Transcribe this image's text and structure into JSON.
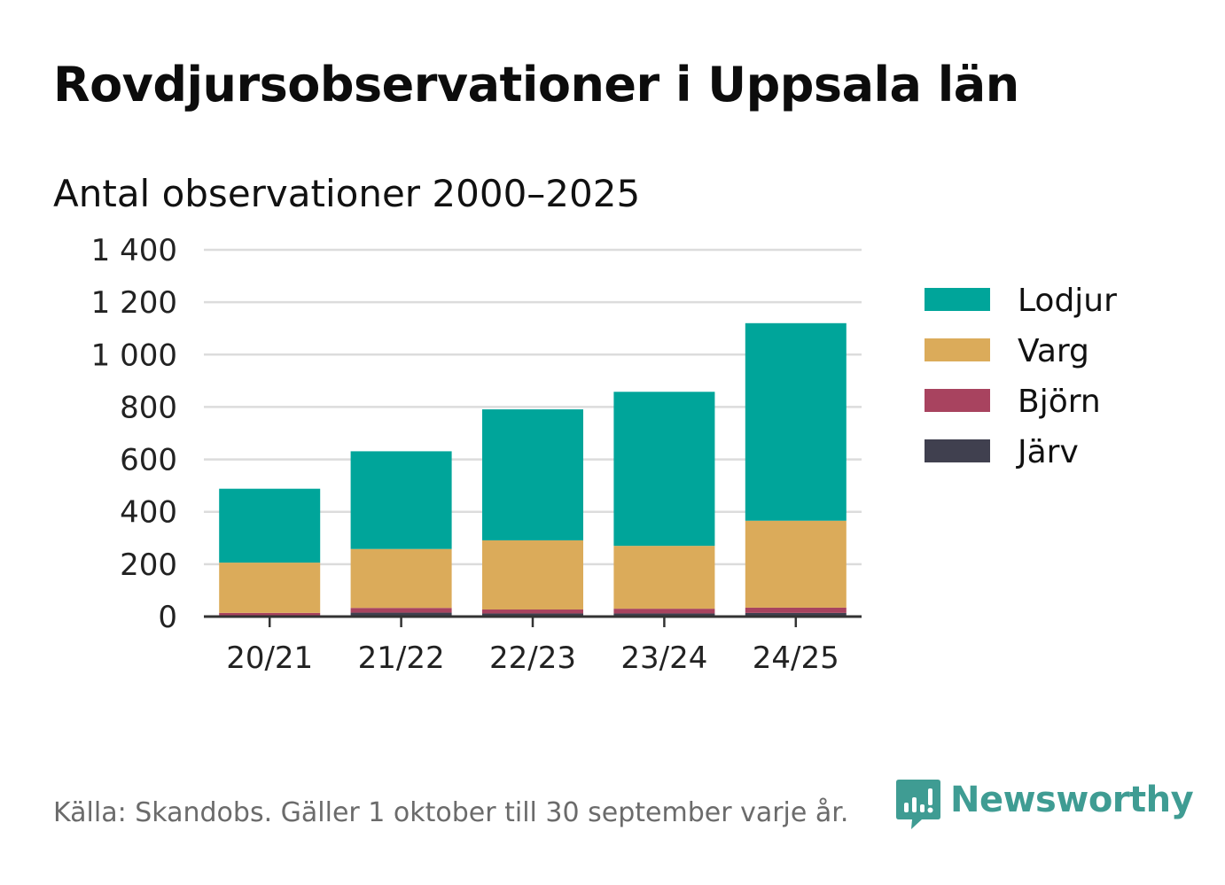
{
  "title": "Rovdjursobservationer i Uppsala län",
  "subtitle": "Antal observationer 2000–2025",
  "footer": {
    "source": "Källa: Skandobs. Gäller 1 oktober till 30 september varje år.",
    "brand": "Newsworthy",
    "brand_color": "#3f9c93"
  },
  "chart_data": {
    "type": "bar",
    "stacked": true,
    "title": "Rovdjursobservationer i Uppsala län",
    "subtitle": "Antal observationer 2000–2025",
    "xlabel": "",
    "ylabel": "",
    "ylim": [
      0,
      1400
    ],
    "yticks": [
      0,
      200,
      400,
      600,
      800,
      1000,
      1200,
      1400
    ],
    "ytick_labels": [
      "0",
      "200",
      "400",
      "600",
      "800",
      "1 000",
      "1 200",
      "1 400"
    ],
    "grid": true,
    "legend_position": "right",
    "categories": [
      "20/21",
      "21/22",
      "22/23",
      "23/24",
      "24/25"
    ],
    "series": [
      {
        "name": "Järv",
        "color": "#40404f",
        "values": [
          4,
          15,
          12,
          12,
          14
        ]
      },
      {
        "name": "Björn",
        "color": "#a8435f",
        "values": [
          10,
          18,
          15,
          18,
          20
        ]
      },
      {
        "name": "Varg",
        "color": "#dbab5a",
        "values": [
          192,
          225,
          264,
          240,
          332
        ]
      },
      {
        "name": "Lodjur",
        "color": "#00a59a",
        "values": [
          282,
          373,
          500,
          588,
          754
        ]
      }
    ],
    "legend_order": [
      "Lodjur",
      "Varg",
      "Björn",
      "Järv"
    ]
  }
}
